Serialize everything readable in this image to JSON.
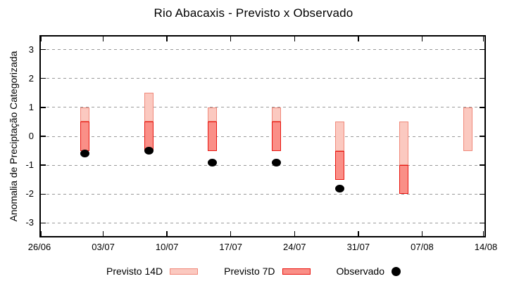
{
  "title": "Rio Abacaxis - Previsto x Observado",
  "chart_data": {
    "type": "bar",
    "title": "Rio Abacaxis - Previsto x Observado",
    "xlabel": "",
    "ylabel": "Anomalia de Preciptação Categorizada",
    "ylim": [
      -3.5,
      3.5
    ],
    "yticks": [
      3,
      2,
      1,
      0,
      -1,
      -2,
      -3
    ],
    "grid": "horizontal dashed lines at integer y values",
    "x_axis": {
      "tick_labels": [
        "26/06",
        "03/07",
        "10/07",
        "17/07",
        "24/07",
        "31/07",
        "07/08",
        "14/08"
      ],
      "tick_days": [
        0,
        7,
        14,
        21,
        28,
        35,
        42,
        49
      ],
      "range_days": 49
    },
    "legend": {
      "position": "bottom-center",
      "entries": [
        "Previsto 14D",
        "Previsto 7D",
        "Observado"
      ]
    },
    "colors": {
      "previsto14d_fill": "#fbc9c0",
      "previsto14d_border": "#f0897b",
      "previsto7d_fill": "#fa8f87",
      "previsto7d_border": "#e8150f",
      "observado": "#000000",
      "grid": "#9a9a9a",
      "axis": "#000000"
    },
    "series": [
      {
        "name": "Previsto 14D",
        "type": "range-bar",
        "points": [
          {
            "x": "01/07",
            "day": 5,
            "low": 0.5,
            "high": 1.0
          },
          {
            "x": "08/07",
            "day": 12,
            "low": 0.5,
            "high": 1.5
          },
          {
            "x": "15/07",
            "day": 19,
            "low": 0.5,
            "high": 1.0
          },
          {
            "x": "22/07",
            "day": 26,
            "low": 0.5,
            "high": 1.0
          },
          {
            "x": "29/07",
            "day": 33,
            "low": -0.5,
            "high": 0.5
          },
          {
            "x": "05/08",
            "day": 40,
            "low": -1.0,
            "high": 0.5
          },
          {
            "x": "12/08",
            "day": 47,
            "low": -0.5,
            "high": 1.0
          }
        ]
      },
      {
        "name": "Previsto 7D",
        "type": "range-bar",
        "points": [
          {
            "x": "01/07",
            "day": 5,
            "low": -0.5,
            "high": 0.5
          },
          {
            "x": "08/07",
            "day": 12,
            "low": -0.5,
            "high": 0.5
          },
          {
            "x": "15/07",
            "day": 19,
            "low": -0.5,
            "high": 0.5
          },
          {
            "x": "22/07",
            "day": 26,
            "low": -0.5,
            "high": 0.5
          },
          {
            "x": "29/07",
            "day": 33,
            "low": -1.5,
            "high": -0.5
          },
          {
            "x": "05/08",
            "day": 40,
            "low": -2.0,
            "high": -1.0
          }
        ]
      },
      {
        "name": "Observado",
        "type": "scatter",
        "points": [
          {
            "x": "01/07",
            "day": 5,
            "y": -0.6
          },
          {
            "x": "08/07",
            "day": 12,
            "y": -0.5
          },
          {
            "x": "15/07",
            "day": 19,
            "y": -0.9
          },
          {
            "x": "22/07",
            "day": 26,
            "y": -0.9
          },
          {
            "x": "29/07",
            "day": 33,
            "y": -1.8
          }
        ]
      }
    ]
  }
}
